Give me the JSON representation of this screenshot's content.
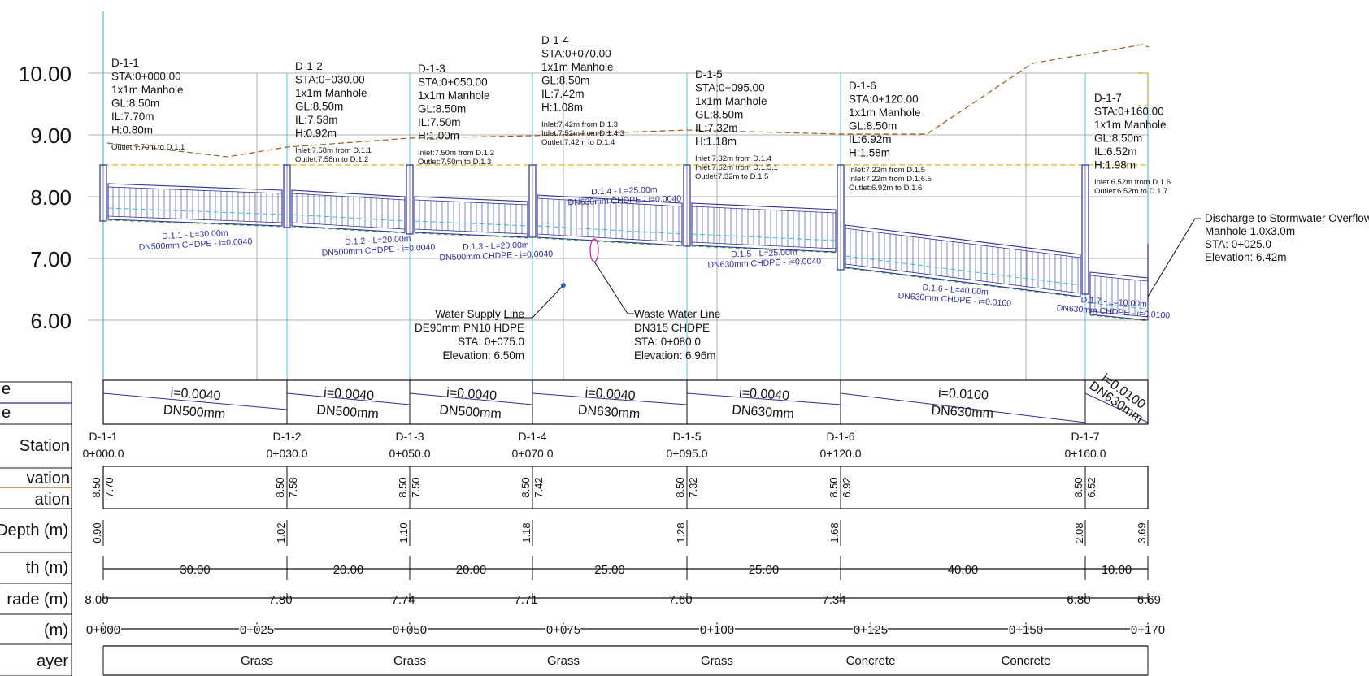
{
  "elevation_axis": [
    "10.00",
    "9.00",
    "8.00",
    "7.00",
    "6.00"
  ],
  "manholes": [
    {
      "id": "D-1-1",
      "sta": "STA:0+000.00",
      "type": "1x1m Manhole",
      "gl": "GL:8.50m",
      "il": "IL:7.70m",
      "h": "H:0.80m",
      "notes": [
        "Outlet:7.70m to D.1.1"
      ]
    },
    {
      "id": "D-1-2",
      "sta": "STA:0+030.00",
      "type": "1x1m Manhole",
      "gl": "GL:8.50m",
      "il": "IL:7.58m",
      "h": "H:0.92m",
      "notes": [
        "Inlet:7.58m from D.1.1",
        "Outlet:7.58m to D.1.2"
      ]
    },
    {
      "id": "D-1-3",
      "sta": "STA:0+050.00",
      "type": "1x1m Manhole",
      "gl": "GL:8.50m",
      "il": "IL:7.50m",
      "h": "H:1.00m",
      "notes": [
        "Inlet:7.50m from D.1.2",
        "Outlet:7.50m to D.1.3"
      ]
    },
    {
      "id": "D-1-4",
      "sta": "STA:0+070.00",
      "type": "1x1m Manhole",
      "gl": "GL:8.50m",
      "il": "IL:7.42m",
      "h": "H:1.08m",
      "notes": [
        "Inlet:7.42m from D.1.3",
        "Inlet:7.52m from D.1.4.3",
        "Outlet:7.42m to D.1.4"
      ]
    },
    {
      "id": "D-1-5",
      "sta": "STA:0+095.00",
      "type": "1x1m Manhole",
      "gl": "GL:8.50m",
      "il": "IL:7.32m",
      "h": "H:1.18m",
      "notes": [
        "Inlet:7.32m from D.1.4",
        "Inlet:7.62m from D.1.5.1",
        "Outlet:7.32m to D.1.5"
      ]
    },
    {
      "id": "D-1-6",
      "sta": "STA:0+120.00",
      "type": "1x1m Manhole",
      "gl": "GL:8.50m",
      "il": "IL:6.92m",
      "h": "H:1.58m",
      "notes": [
        "Inlet:7.22m from D.1.5",
        "Inlet:7.22m from D.1.6.5",
        "Outlet:6.92m to D.1.6"
      ]
    },
    {
      "id": "D-1-7",
      "sta": "STA:0+160.00",
      "type": "1x1m Manhole",
      "gl": "GL:8.50m",
      "il": "IL:6.52m",
      "h": "H:1.98m",
      "notes": [
        "Inlet:6.52m from D.1.6",
        "Outlet:6.52m to D.1.7"
      ]
    }
  ],
  "pipes": [
    {
      "label": "D.1.1 - L=30.00m",
      "spec": "DN500mm CHDPE - i=0.0040"
    },
    {
      "label": "D.1.2 - L=20.00m",
      "spec": "DN500mm CHDPE - i=0.0040"
    },
    {
      "label": "D.1.3 - L=20.00m",
      "spec": "DN500mm CHDPE - i=0.0040"
    },
    {
      "label": "D.1.4 - L=25.00m",
      "spec": "DN630mm CHDPE - i=0.0040"
    },
    {
      "label": "D.1.5 - L=25.00m",
      "spec": "DN630mm CHDPE - i=0.0040"
    },
    {
      "label": "D.1.6 - L=40.00m",
      "spec": "DN630mm CHDPE - i=0.0100"
    },
    {
      "label": "D.1.7 - L=10.00m",
      "spec": "DN630mm CHDPE - i=0.0100"
    }
  ],
  "callouts": {
    "water_supply": [
      "Water Supply Line",
      "DE90mm PN10 HDPE",
      "STA: 0+075.0",
      "Elevation: 6.50m"
    ],
    "waste_water": [
      "Waste Water Line",
      "DN315 CHDPE",
      "STA: 0+080.0",
      "Elevation: 6.96m"
    ],
    "discharge": [
      "Discharge to Stormwater Overflow",
      "Manhole 1.0x3.0m",
      "STA: 0+025.0",
      "Elevation: 6.42m"
    ]
  },
  "table": {
    "row_labels": [
      "e",
      "e",
      "Station",
      "vation",
      "ation",
      "Depth (m)",
      "th (m)",
      "rade (m)",
      "(m)",
      "ayer"
    ],
    "slopes": [
      {
        "i": "i=0.0040",
        "dn": "DN500mm"
      },
      {
        "i": "i=0.0040",
        "dn": "DN500mm"
      },
      {
        "i": "i=0.0040",
        "dn": "DN500mm"
      },
      {
        "i": "i=0.0040",
        "dn": "DN630mm"
      },
      {
        "i": "i=0.0040",
        "dn": "DN630mm"
      },
      {
        "i": "i=0.0100",
        "dn": "DN630mm"
      },
      {
        "i": "i=0.0100",
        "dn": "DN630mm"
      }
    ],
    "stations": [
      {
        "id": "D-1-1",
        "ch": "0+000.0"
      },
      {
        "id": "D-1-2",
        "ch": "0+030.0"
      },
      {
        "id": "D-1-3",
        "ch": "0+050.0"
      },
      {
        "id": "D-1-4",
        "ch": "0+070.0"
      },
      {
        "id": "D-1-5",
        "ch": "0+095.0"
      },
      {
        "id": "D-1-6",
        "ch": "0+120.0"
      },
      {
        "id": "D-1-7",
        "ch": "0+160.0"
      }
    ],
    "elevations": [
      {
        "gl": "8.50",
        "il": "7.70"
      },
      {
        "gl": "8.50",
        "il": "7.58"
      },
      {
        "gl": "8.50",
        "il": "7.50"
      },
      {
        "gl": "8.50",
        "il": "7.42"
      },
      {
        "gl": "8.50",
        "il": "7.32"
      },
      {
        "gl": "8.50",
        "il": "6.92"
      },
      {
        "gl": "8.50",
        "il": "6.52"
      }
    ],
    "depths": [
      "0.90",
      "1.02",
      "1.10",
      "1.18",
      "1.28",
      "1.68",
      "2.08",
      "3.69"
    ],
    "lengths": [
      "30.00",
      "20.00",
      "20.00",
      "25.00",
      "25.00",
      "40.00",
      "10.00"
    ],
    "grades": [
      "8.00",
      "7.80",
      "7.74",
      "7.71",
      "7.60",
      "7.34",
      "6.80",
      "6.69"
    ],
    "chainage": [
      "0+000",
      "0+025",
      "0+050",
      "0+075",
      "0+100",
      "0+125",
      "0+150",
      "0+170"
    ],
    "layers": [
      "Grass",
      "Grass",
      "Grass",
      "Grass",
      "Concrete",
      "Concrete"
    ]
  },
  "colors": {
    "pipe": "#2b2f8f",
    "ground": "#9a5a22",
    "dash_gold": "#e6b21f",
    "cyan": "#29b6e6",
    "magenta": "#c2189a",
    "grid": "#9a9a9a"
  }
}
